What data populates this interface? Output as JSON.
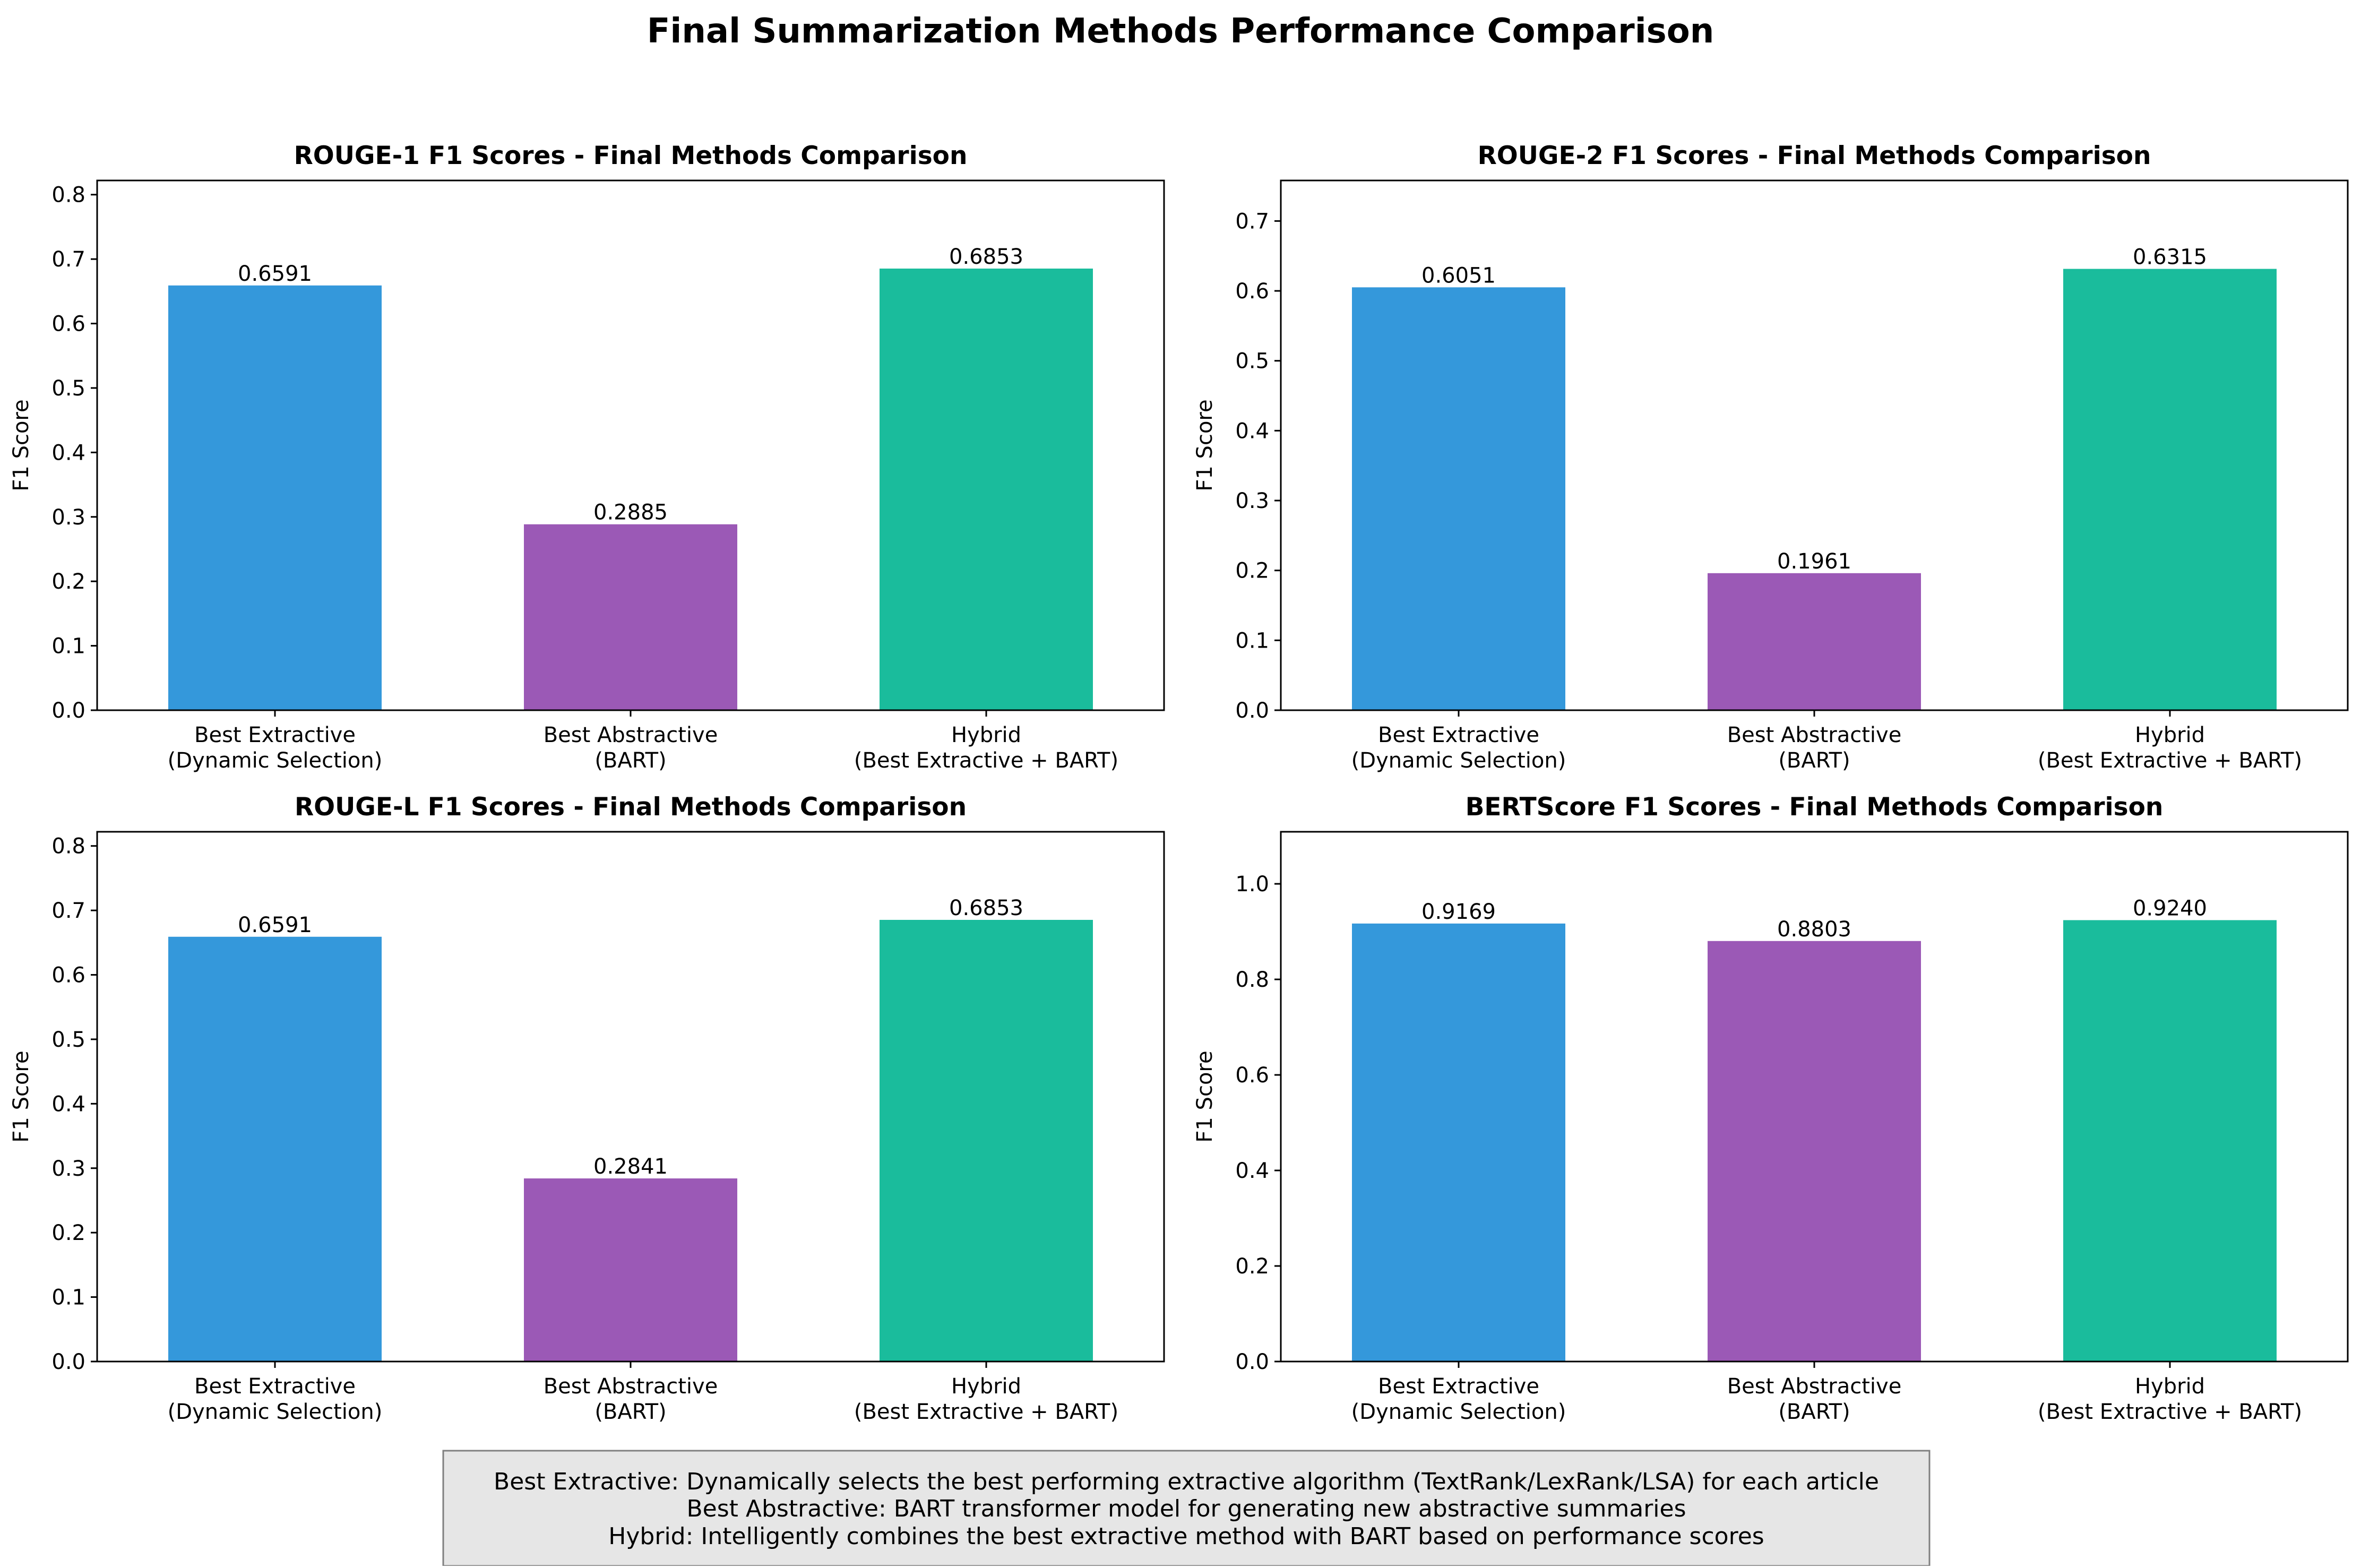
{
  "figure": {
    "title": "Final Summarization Methods Performance Comparison",
    "note_lines": [
      "Best Extractive: Dynamically selects the best performing extractive algorithm (TextRank/LexRank/LSA) for each article",
      "Best Abstractive: BART transformer model for generating new abstractive summaries",
      "Hybrid: Intelligently combines the best extractive method with BART based on performance scores"
    ],
    "note_box_color": "#e6e6e6"
  },
  "colors": {
    "extractive": "#3498db",
    "abstractive": "#9b59b6",
    "hybrid": "#1abc9c"
  },
  "chart_data": [
    {
      "type": "bar",
      "title": "ROUGE-1 F1 Scores - Final Methods Comparison",
      "ylabel": "F1 Score",
      "categories": [
        "Best Extractive\n(Dynamic Selection)",
        "Best Abstractive\n(BART)",
        "Hybrid\n(Best Extractive + BART)"
      ],
      "values": [
        0.6591,
        0.2885,
        0.6853
      ],
      "value_labels": [
        "0.6591",
        "0.2885",
        "0.6853"
      ],
      "ylim": [
        0,
        0.822
      ],
      "yticks": [
        "0.0",
        "0.1",
        "0.2",
        "0.3",
        "0.4",
        "0.5",
        "0.6",
        "0.7",
        "0.8"
      ],
      "grid": false
    },
    {
      "type": "bar",
      "title": "ROUGE-2 F1 Scores - Final Methods Comparison",
      "ylabel": "F1 Score",
      "categories": [
        "Best Extractive\n(Dynamic Selection)",
        "Best Abstractive\n(BART)",
        "Hybrid\n(Best Extractive + BART)"
      ],
      "values": [
        0.6051,
        0.1961,
        0.6315
      ],
      "value_labels": [
        "0.6051",
        "0.1961",
        "0.6315"
      ],
      "ylim": [
        0,
        0.758
      ],
      "yticks": [
        "0.0",
        "0.1",
        "0.2",
        "0.3",
        "0.4",
        "0.5",
        "0.6",
        "0.7"
      ],
      "grid": false
    },
    {
      "type": "bar",
      "title": "ROUGE-L F1 Scores - Final Methods Comparison",
      "ylabel": "F1 Score",
      "categories": [
        "Best Extractive\n(Dynamic Selection)",
        "Best Abstractive\n(BART)",
        "Hybrid\n(Best Extractive + BART)"
      ],
      "values": [
        0.6591,
        0.2841,
        0.6853
      ],
      "value_labels": [
        "0.6591",
        "0.2841",
        "0.6853"
      ],
      "ylim": [
        0,
        0.822
      ],
      "yticks": [
        "0.0",
        "0.1",
        "0.2",
        "0.3",
        "0.4",
        "0.5",
        "0.6",
        "0.7",
        "0.8"
      ],
      "grid": false
    },
    {
      "type": "bar",
      "title": "BERTScore F1 Scores - Final Methods Comparison",
      "ylabel": "F1 Score",
      "categories": [
        "Best Extractive\n(Dynamic Selection)",
        "Best Abstractive\n(BART)",
        "Hybrid\n(Best Extractive + BART)"
      ],
      "values": [
        0.9169,
        0.8803,
        0.924
      ],
      "value_labels": [
        "0.9169",
        "0.8803",
        "0.9240"
      ],
      "ylim": [
        0,
        1.109
      ],
      "yticks": [
        "0.0",
        "0.2",
        "0.4",
        "0.6",
        "0.8",
        "1.0"
      ],
      "grid": false
    }
  ]
}
